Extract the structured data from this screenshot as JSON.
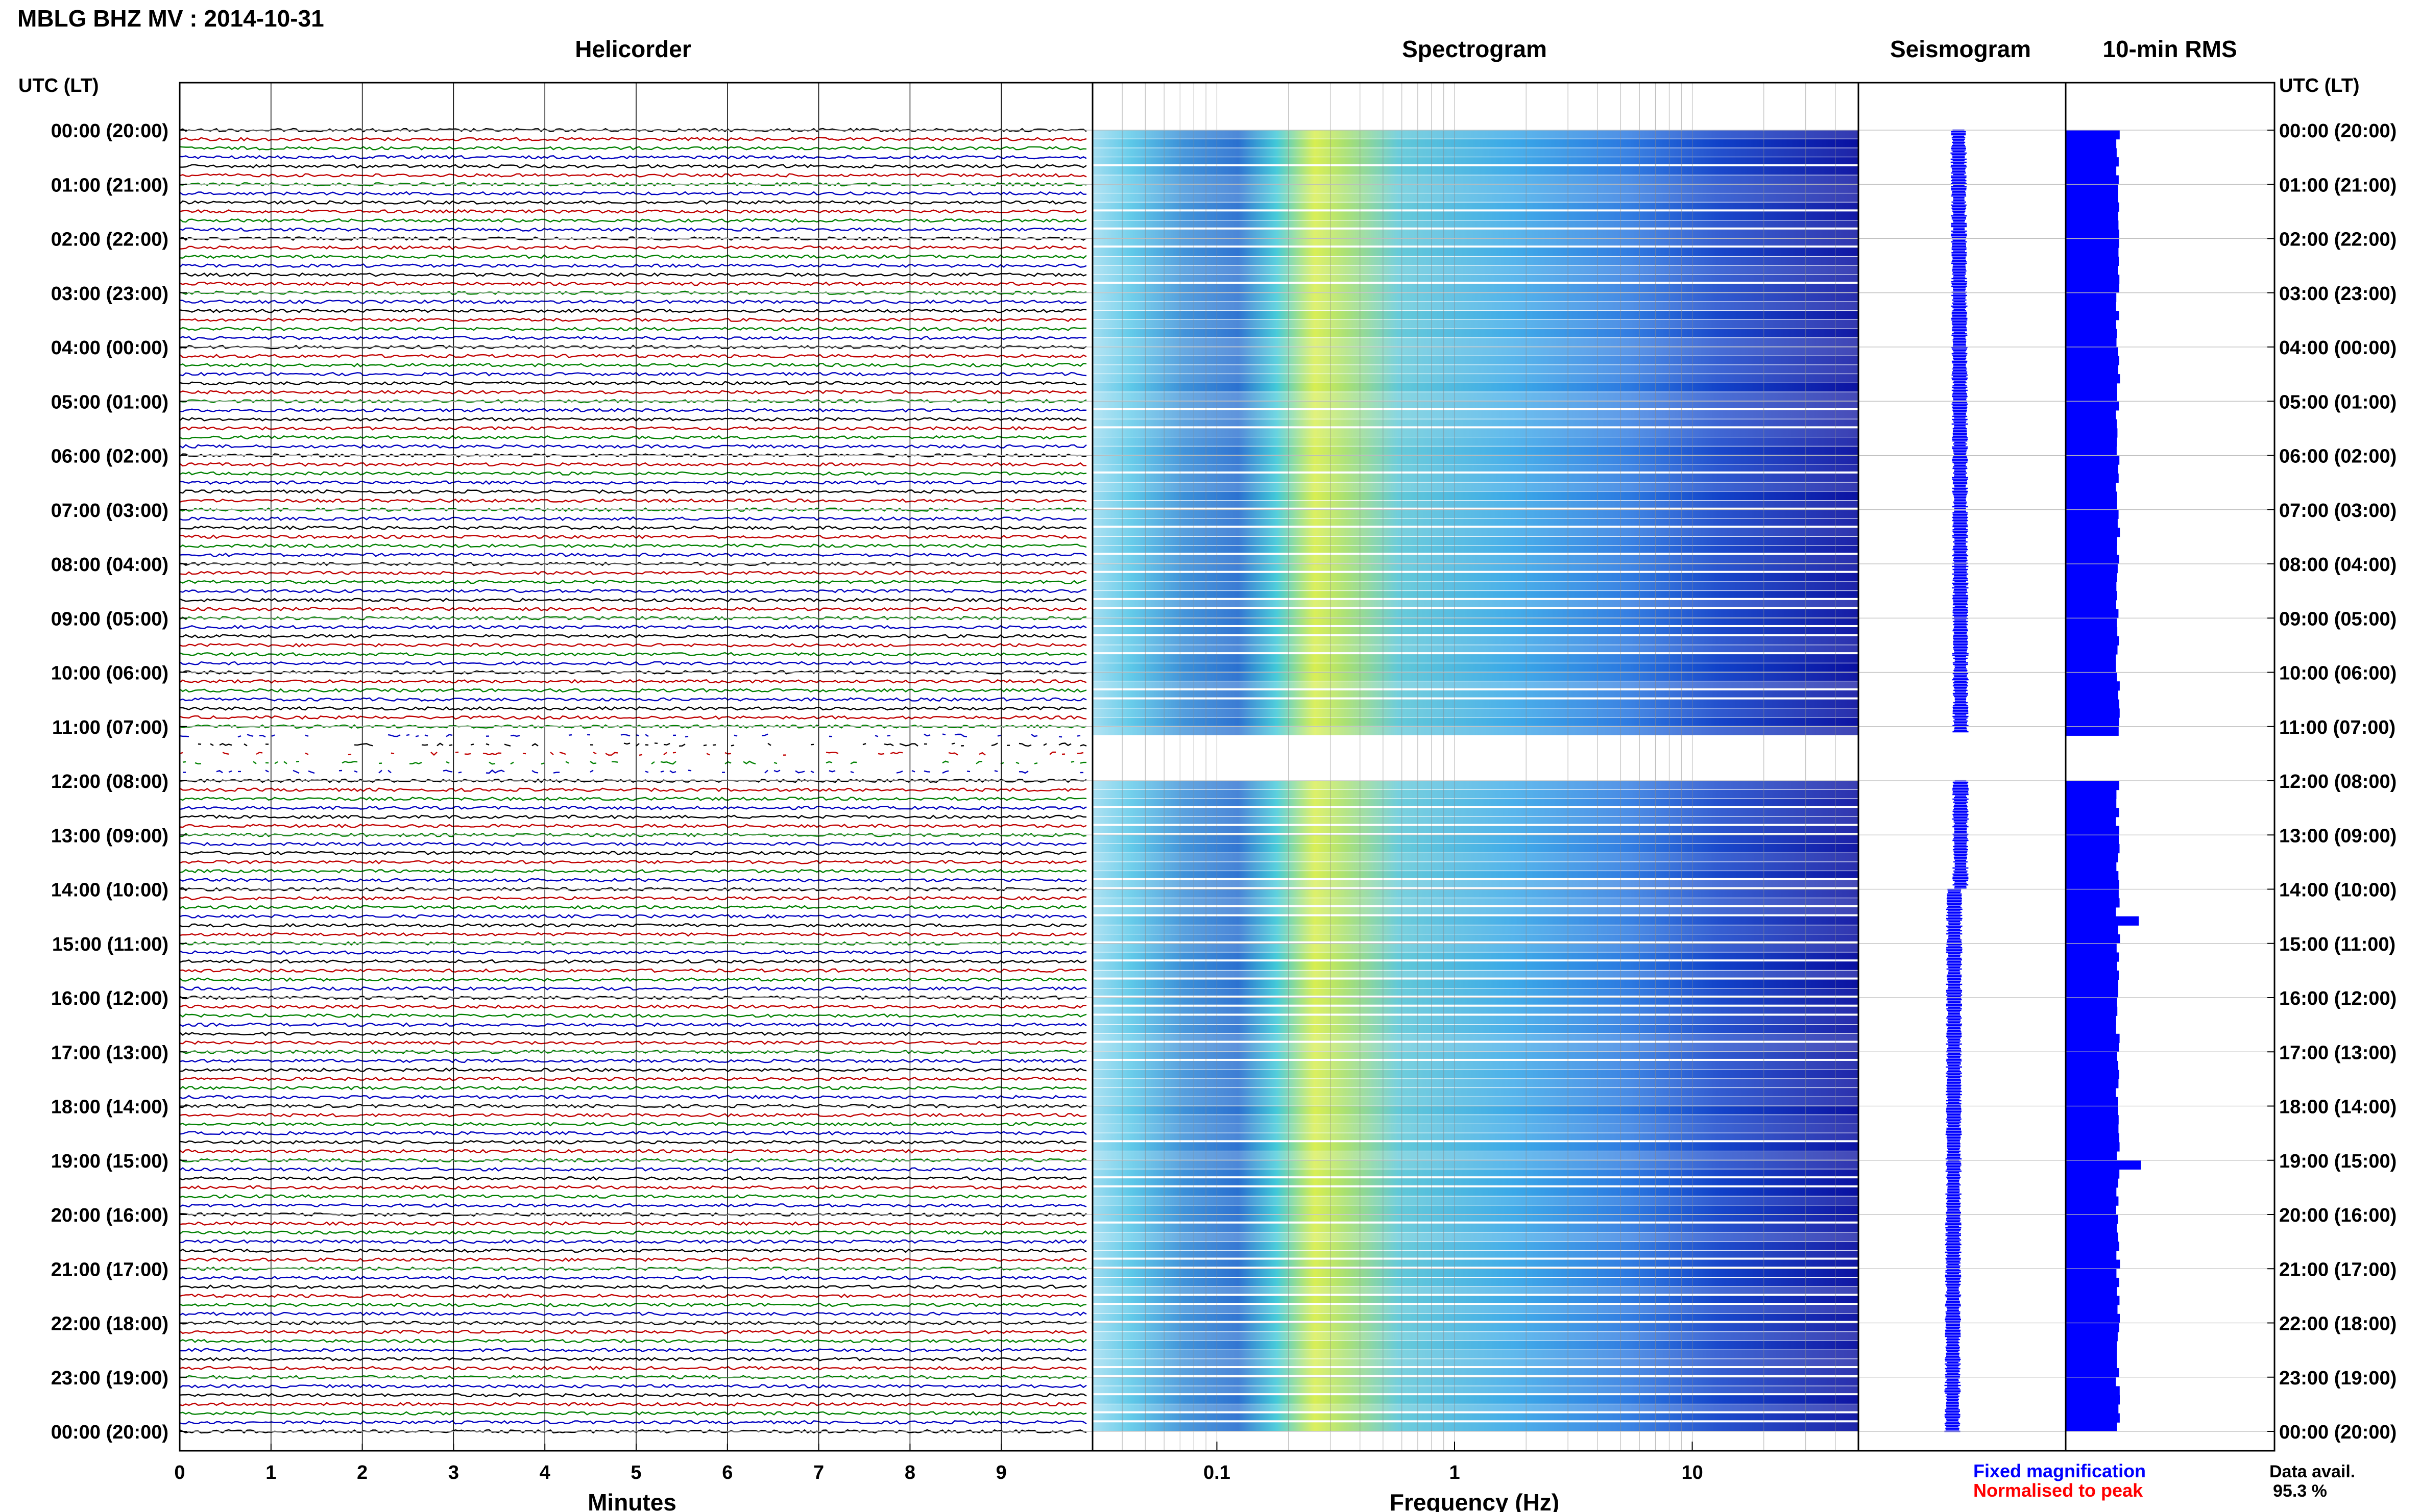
{
  "header": {
    "station_title": "MBLG BHZ MV : 2014-10-31",
    "panel_titles": [
      "Helicorder",
      "Spectrogram",
      "Seismogram",
      "10-min RMS"
    ],
    "utc_lt_label_left": "UTC (LT)",
    "utc_lt_label_right": "UTC (LT)"
  },
  "time_labels": [
    "00:00 (20:00)",
    "01:00 (21:00)",
    "02:00 (22:00)",
    "03:00 (23:00)",
    "04:00 (00:00)",
    "05:00 (01:00)",
    "06:00 (02:00)",
    "07:00 (03:00)",
    "08:00 (04:00)",
    "09:00 (05:00)",
    "10:00 (06:00)",
    "11:00 (07:00)",
    "12:00 (08:00)",
    "13:00 (09:00)",
    "14:00 (10:00)",
    "15:00 (11:00)",
    "16:00 (12:00)",
    "17:00 (13:00)",
    "18:00 (14:00)",
    "19:00 (15:00)",
    "20:00 (16:00)",
    "21:00 (17:00)",
    "22:00 (18:00)",
    "23:00 (19:00)",
    "00:00 (20:00)"
  ],
  "footer": {
    "xlabel_helicorder": "Minutes",
    "xlabel_spectrogram": "Frequency (Hz)",
    "legend_fixed": "Fixed magnification",
    "legend_normalised": "Normalised to peak",
    "data_avail_label": "Data avail.",
    "data_avail_value": "95.3 %"
  },
  "colors": {
    "helicorder_traces": [
      "#000000",
      "#c00000",
      "#008000",
      "#0000c0"
    ],
    "fixed_magnification": "#0000ff",
    "normalised_to_peak": "#ff0000",
    "rms_fill": "#0000ff",
    "seismogram": "#0000ff"
  },
  "chart_data": [
    {
      "type": "line",
      "name": "Helicorder",
      "xlabel": "Minutes",
      "xlim": [
        0,
        10
      ],
      "x_ticks": [
        "0",
        "1",
        "2",
        "3",
        "4",
        "5",
        "6",
        "7",
        "8",
        "9"
      ],
      "traces_per_hour": 6,
      "hours": 24,
      "gap_hour_start": 11,
      "gap_hour_end": 12
    },
    {
      "type": "heatmap",
      "name": "Spectrogram",
      "xlabel": "Frequency (Hz)",
      "xscale": "log",
      "xlim": [
        0.03,
        50
      ],
      "x_ticks": [
        "0.1",
        "1",
        "10"
      ],
      "peak_frequency_hz": 0.25,
      "no_data_hours": [
        11,
        12
      ]
    },
    {
      "type": "line",
      "name": "Seismogram",
      "orientation": "vertical",
      "hours": 24
    },
    {
      "type": "bar",
      "name": "10-min RMS",
      "orientation": "horizontal",
      "bins_per_hour": 6,
      "baseline_level": 0.25,
      "peaks": [
        {
          "time_utc": "14:30",
          "level": 0.35
        },
        {
          "time_utc": "19:00",
          "level": 0.36
        }
      ]
    }
  ]
}
